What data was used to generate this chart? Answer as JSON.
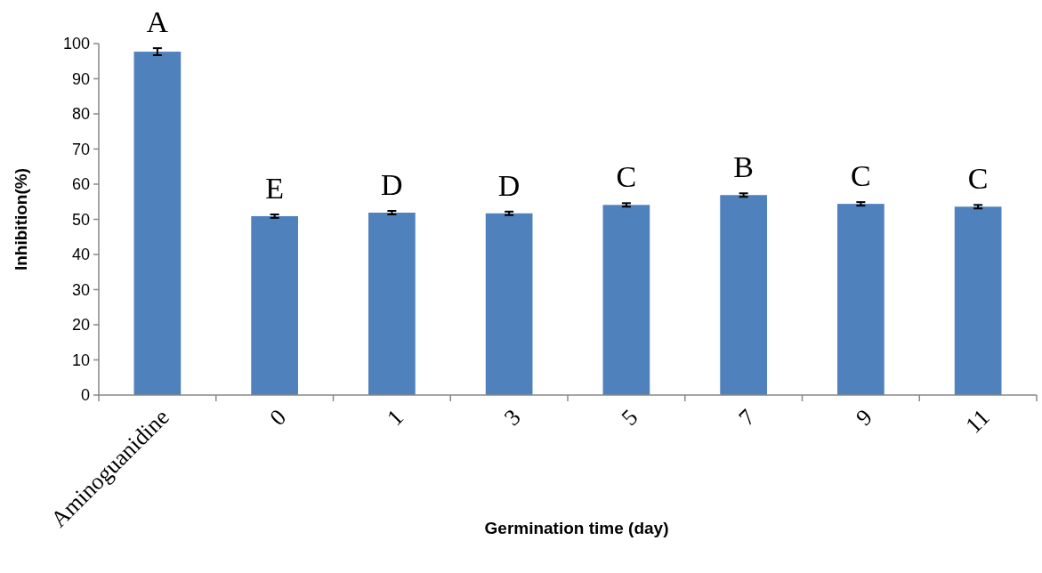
{
  "chart_data": {
    "type": "bar",
    "xlabel": "Germination time (day)",
    "ylabel": "Inhibition(%)",
    "categories": [
      "Aminoguanidine",
      "0",
      "1",
      "3",
      "5",
      "7",
      "9",
      "11"
    ],
    "values": [
      97.7,
      50.9,
      51.9,
      51.7,
      54.1,
      56.9,
      54.4,
      53.6
    ],
    "errors": [
      1.0,
      0.5,
      0.5,
      0.5,
      0.5,
      0.5,
      0.5,
      0.5
    ],
    "color": "#4f81bd",
    "ylim": [
      0,
      100
    ],
    "yticks": [
      0,
      10,
      20,
      30,
      40,
      50,
      60,
      70,
      80,
      90,
      100
    ],
    "grid": false,
    "annotations": [
      {
        "text": "A",
        "x": "Aminoguanidine",
        "y": 97.7
      },
      {
        "text": "E",
        "x": "0",
        "y": 50.9
      },
      {
        "text": "D",
        "x": "1",
        "y": 51.9
      },
      {
        "text": "D",
        "x": "3",
        "y": 51.7
      },
      {
        "text": "C",
        "x": "5",
        "y": 54.1
      },
      {
        "text": "B",
        "x": "7",
        "y": 56.9
      },
      {
        "text": "C",
        "x": "9",
        "y": 54.4
      },
      {
        "text": "C",
        "x": "11",
        "y": 53.6
      }
    ]
  }
}
